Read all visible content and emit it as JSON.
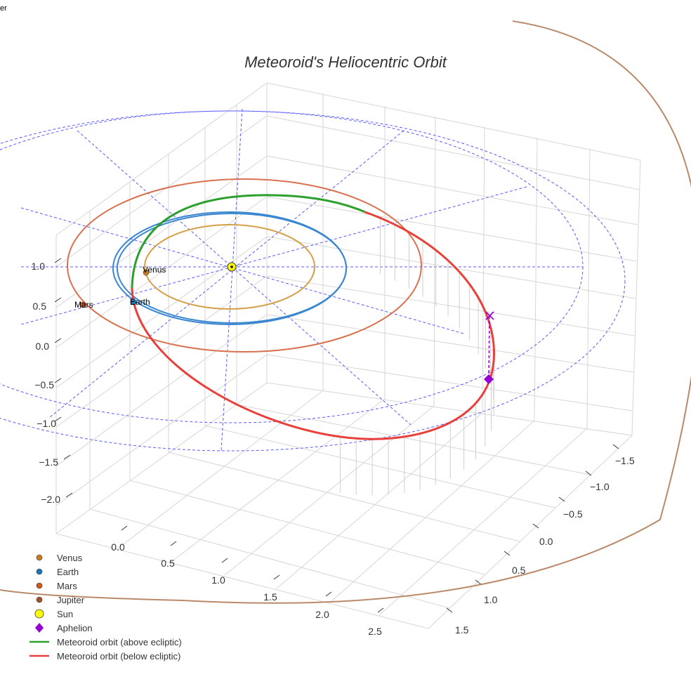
{
  "corner_text": "er",
  "chart_data": {
    "type": "scatter3d",
    "title": "Meteoroid's Heliocentric Orbit",
    "axes": {
      "x_ticks": [
        "0.0",
        "0.5",
        "1.0",
        "1.5",
        "2.0",
        "2.5"
      ],
      "y_ticks": [
        "−1.5",
        "−1.0",
        "−0.5",
        "0.0",
        "0.5",
        "1.0",
        "1.5"
      ],
      "z_ticks": [
        "1.0",
        "0.5",
        "0.0",
        "−0.5",
        "−1.0",
        "−1.5",
        "−2.0"
      ],
      "grid": true
    },
    "bodies": [
      {
        "name": "Venus",
        "label": "Venus",
        "color": "#c87d1e",
        "orbit_color": "#d4a04a",
        "orbit_radius_au": 0.72
      },
      {
        "name": "Earth",
        "label": "Earth",
        "color": "#1f77b4",
        "orbit_color": "#3a87d0",
        "orbit_radius_au": 1.0
      },
      {
        "name": "Mars",
        "label": "Mars",
        "color": "#cc5a20",
        "orbit_color": "#d9714f",
        "orbit_radius_au": 1.52
      },
      {
        "name": "Jupiter",
        "color": "#a0522d",
        "orbit_color": "#b98a6a",
        "orbit_radius_au": 5.2
      }
    ],
    "sun": {
      "name": "Sun",
      "color": "#ffff00"
    },
    "aphelion": {
      "name": "Aphelion",
      "color": "#9400d3"
    },
    "meteoroid": {
      "above": {
        "name": "Meteoroid orbit (above ecliptic)",
        "color": "#2ca02c"
      },
      "below": {
        "name": "Meteoroid orbit (below ecliptic)",
        "color": "#e8403a"
      }
    },
    "ecliptic_grid_color": "#5a5aff",
    "legend": [
      {
        "label": "Venus",
        "marker": "dot",
        "color": "#c87d1e"
      },
      {
        "label": "Earth",
        "marker": "dot",
        "color": "#1f77b4"
      },
      {
        "label": "Mars",
        "marker": "dot",
        "color": "#cc5a20"
      },
      {
        "label": "Jupiter",
        "marker": "dot",
        "color": "#a0522d"
      },
      {
        "label": "Sun",
        "marker": "bigdot",
        "color": "#ffff00"
      },
      {
        "label": "Aphelion",
        "marker": "diamond",
        "color": "#9400d3"
      },
      {
        "label": "Meteoroid orbit (above ecliptic)",
        "marker": "line",
        "color": "#2ca02c"
      },
      {
        "label": "Meteoroid orbit (below ecliptic)",
        "marker": "line",
        "color": "#e8403a"
      }
    ],
    "legend_position": "bottom-left"
  }
}
